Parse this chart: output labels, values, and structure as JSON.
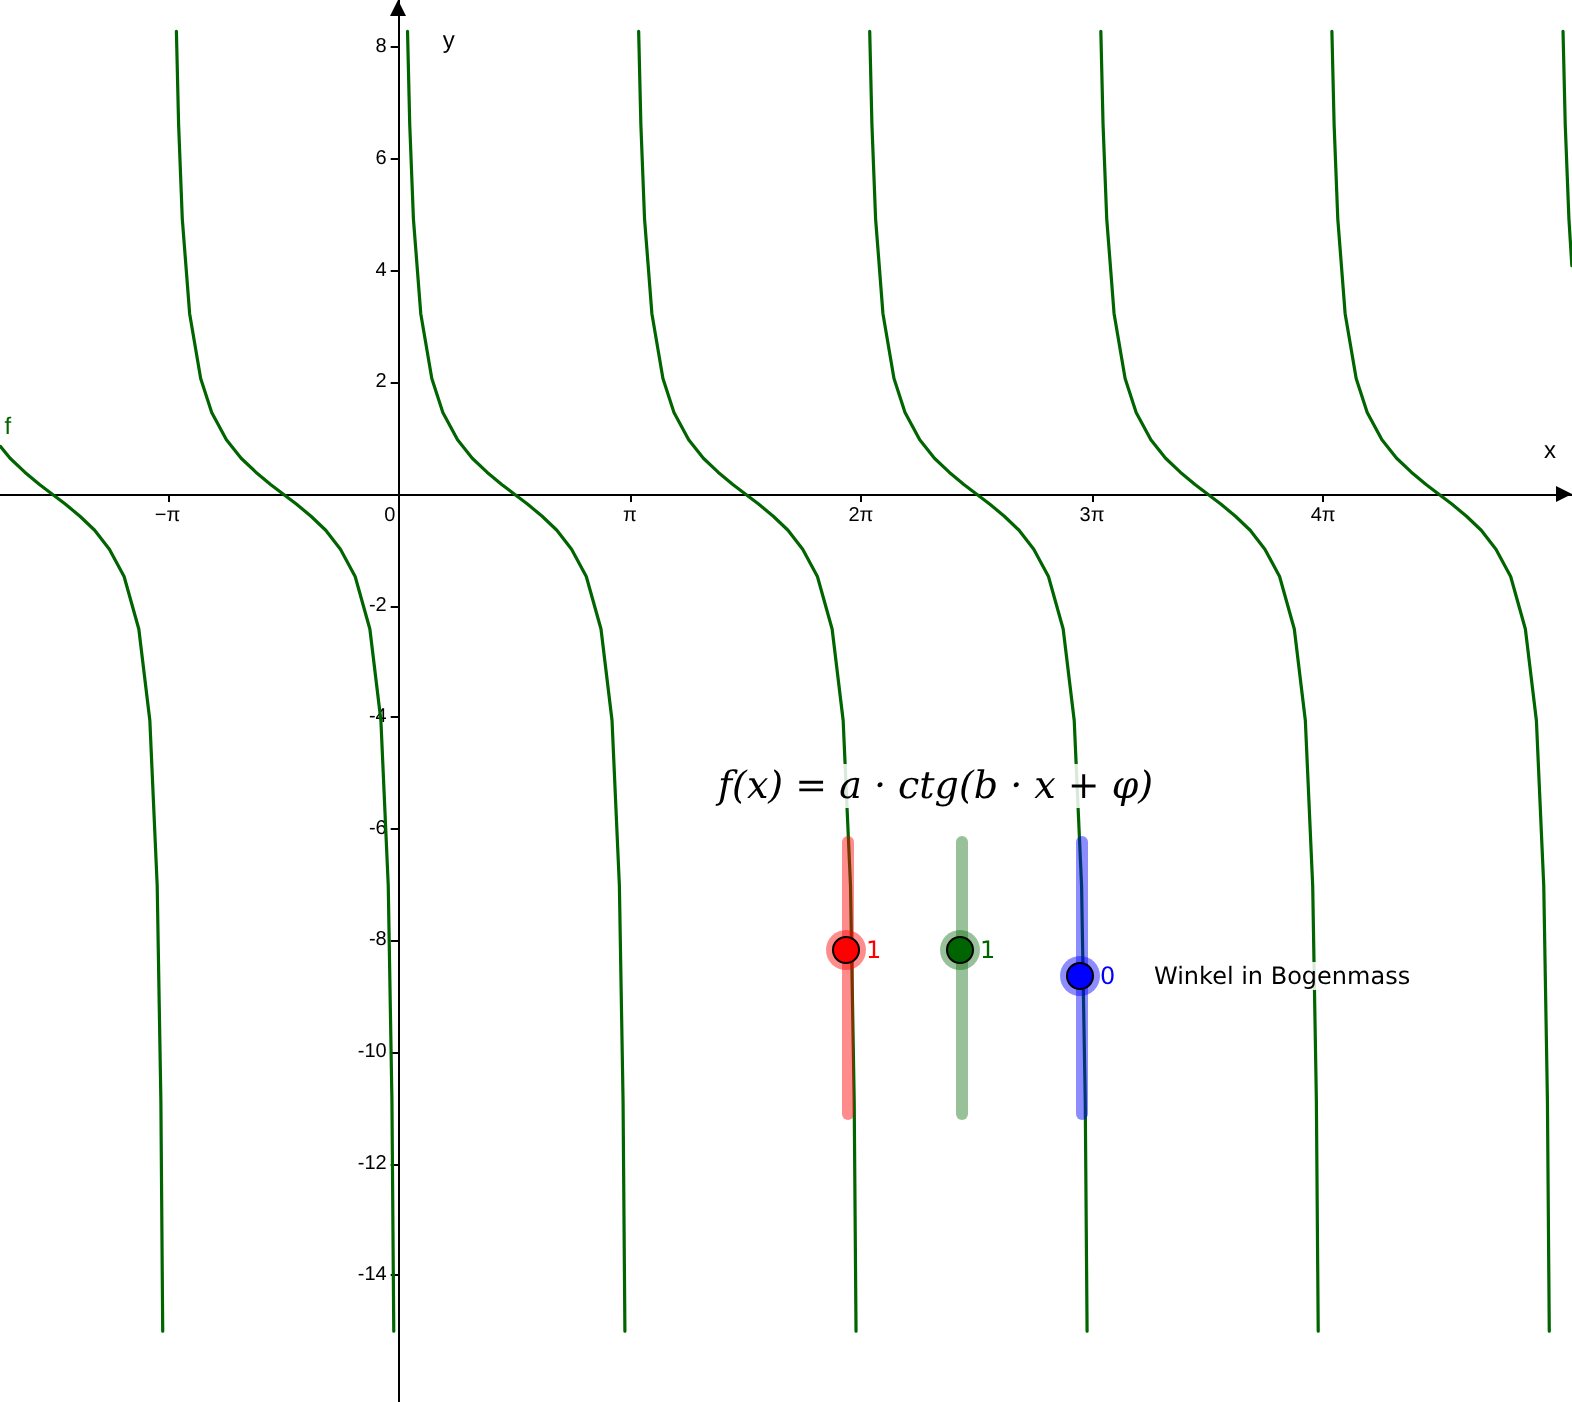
{
  "chart_data": {
    "type": "line",
    "xlabel": "x",
    "ylabel": "y",
    "xlim": [
      -5.42,
      15.95
    ],
    "ylim": [
      -16.27,
      8.85
    ],
    "xticks": [
      {
        "value": -3.1416,
        "label": "−π"
      },
      0,
      {
        "value": 3.1416,
        "label": "π"
      },
      {
        "value": 6.2832,
        "label": "2π"
      },
      {
        "value": 9.4248,
        "label": "3π"
      },
      {
        "value": 12.5664,
        "label": "4π"
      }
    ],
    "yticks": [
      -14,
      -12,
      -10,
      -8,
      -6,
      -4,
      -2,
      2,
      4,
      6,
      8
    ],
    "annotations": [
      "f(x) = a · ctg(b · x + φ)",
      "1",
      "1",
      "0",
      "Winkel in Bogenmass"
    ],
    "series": [
      {
        "name": "f",
        "color": "#006400",
        "x": [
          -5.413,
          -5.283,
          -5.083,
          -4.883,
          -4.713,
          -4.533,
          -4.333,
          -4.133,
          -3.933,
          -3.733,
          -3.533,
          -3.383,
          -3.283,
          -3.233,
          -3.208,
          -3.142,
          -3.022,
          -2.992,
          -2.942,
          -2.842,
          -2.692,
          -2.542,
          -2.342,
          -2.142,
          -1.942,
          -1.742,
          -1.572,
          -1.392,
          -1.192,
          -0.992,
          -0.792,
          -0.592,
          -0.392,
          -0.242,
          -0.142,
          -0.092,
          -0.067,
          0,
          0.12,
          0.15,
          0.2,
          0.3,
          0.45,
          0.6,
          0.8,
          1,
          1.2,
          1.4,
          1.57,
          1.75,
          1.95,
          2.15,
          2.35,
          2.55,
          2.75,
          2.9,
          3,
          3.05,
          3.075,
          3.142,
          3.262,
          3.292,
          3.342,
          3.442,
          3.592,
          3.742,
          3.942,
          4.142,
          4.342,
          4.542,
          4.712,
          4.892,
          5.092,
          5.292,
          5.492,
          5.692,
          5.892,
          6.042,
          6.142,
          6.192,
          6.217,
          6.283,
          6.403,
          6.433,
          6.483,
          6.583,
          6.733,
          6.883,
          7.083,
          7.283,
          7.483,
          7.683,
          7.853,
          8.033,
          8.233,
          8.433,
          8.633,
          8.833,
          9.033,
          9.183,
          9.283,
          9.333,
          9.358,
          9.425,
          9.545,
          9.575,
          9.625,
          9.725,
          9.875,
          10.025,
          10.225,
          10.425,
          10.625,
          10.825,
          10.995,
          11.175,
          11.375,
          11.575,
          11.775,
          11.975,
          12.175,
          12.325,
          12.425,
          12.475,
          12.5,
          12.566,
          12.686,
          12.716,
          12.766,
          12.866,
          13.016,
          13.166,
          13.366,
          13.566,
          13.766,
          13.966,
          14.136,
          14.316,
          14.516,
          14.716,
          14.916,
          15.116,
          15.316,
          15.466,
          15.566,
          15.616,
          15.641,
          15.708,
          15.828,
          15.858,
          15.908,
          15.948
        ],
        "values": [
          0.85,
          0.64,
          0.39,
          0.17,
          0,
          -0.18,
          -0.4,
          -0.65,
          -0.99,
          -1.48,
          -2.42,
          -4.06,
          -7.02,
          -10.88,
          -15.0,
          null,
          8.29,
          6.62,
          4.93,
          3.23,
          2.07,
          1.46,
          0.97,
          0.64,
          0.39,
          0.17,
          0,
          -0.18,
          -0.4,
          -0.65,
          -0.99,
          -1.48,
          -2.42,
          -4.06,
          -7.02,
          -10.88,
          -15.0,
          null,
          8.29,
          6.62,
          4.93,
          3.23,
          2.07,
          1.46,
          0.97,
          0.64,
          0.39,
          0.17,
          0,
          -0.18,
          -0.4,
          -0.65,
          -0.99,
          -1.48,
          -2.42,
          -4.06,
          -7.02,
          -10.88,
          -15.0,
          null,
          8.29,
          6.62,
          4.93,
          3.23,
          2.07,
          1.46,
          0.97,
          0.64,
          0.39,
          0.17,
          0,
          -0.18,
          -0.4,
          -0.65,
          -0.99,
          -1.48,
          -2.42,
          -4.06,
          -7.02,
          -10.88,
          -15.0,
          null,
          8.29,
          6.62,
          4.93,
          3.23,
          2.07,
          1.46,
          0.97,
          0.64,
          0.39,
          0.17,
          0,
          -0.18,
          -0.4,
          -0.65,
          -0.99,
          -1.48,
          -2.42,
          -4.06,
          -7.02,
          -10.88,
          -15.0,
          null,
          8.29,
          6.62,
          4.93,
          3.23,
          2.07,
          1.46,
          0.97,
          0.64,
          0.39,
          0.17,
          0,
          -0.18,
          -0.4,
          -0.65,
          -0.99,
          -1.48,
          -2.42,
          -4.06,
          -7.02,
          -10.88,
          -15.0,
          null,
          8.29,
          6.62,
          4.93,
          3.23,
          2.07,
          1.46,
          0.97,
          0.64,
          0.39,
          0.17,
          0,
          -0.18,
          -0.4,
          -0.65,
          -0.99,
          -1.48,
          -2.42,
          -4.06,
          -7.02,
          -10.88,
          -15.0,
          null,
          8.29,
          6.62,
          4.93,
          4.09
        ]
      }
    ]
  }
}
